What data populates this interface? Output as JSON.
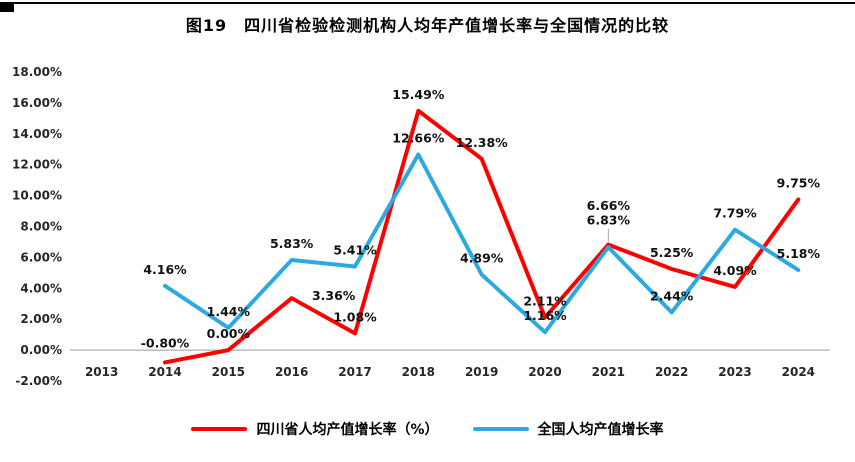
{
  "page": {
    "title": "图19　四川省检验检测机构人均年产值增长率与全国情况的比较"
  },
  "chart_data": {
    "type": "line",
    "title": "图19　四川省检验检测机构人均年产值增长率与全国情况的比较",
    "categories": [
      "2013",
      "2014",
      "2015",
      "2016",
      "2017",
      "2018",
      "2019",
      "2020",
      "2021",
      "2022",
      "2023",
      "2024"
    ],
    "series": [
      {
        "name": "四川省人均产值增长率（%）",
        "color": "#FE0000",
        "values": [
          null,
          -0.8,
          0.0,
          3.36,
          1.08,
          15.49,
          12.38,
          2.11,
          6.83,
          5.25,
          4.09,
          9.75
        ]
      },
      {
        "name": "全国人均产值增长率",
        "color": "#2EA9DF",
        "values": [
          null,
          4.16,
          1.44,
          5.83,
          5.41,
          12.66,
          4.89,
          1.16,
          6.66,
          2.44,
          7.79,
          5.18
        ]
      }
    ],
    "y_axis": {
      "min": -2,
      "max": 18,
      "step": 2,
      "tick_format": "0.00%"
    },
    "xlabel": "",
    "ylabel": "",
    "grid": false,
    "legend_position": "bottom",
    "data_labels_visible": true,
    "label_overrides": {
      "0-1": {
        "dy": -15
      },
      "0-3": {
        "dx": 42,
        "dy": 2
      },
      "0-8": {
        "dy": -20,
        "leader": true
      },
      "1-8": {
        "dy": -37
      }
    }
  }
}
